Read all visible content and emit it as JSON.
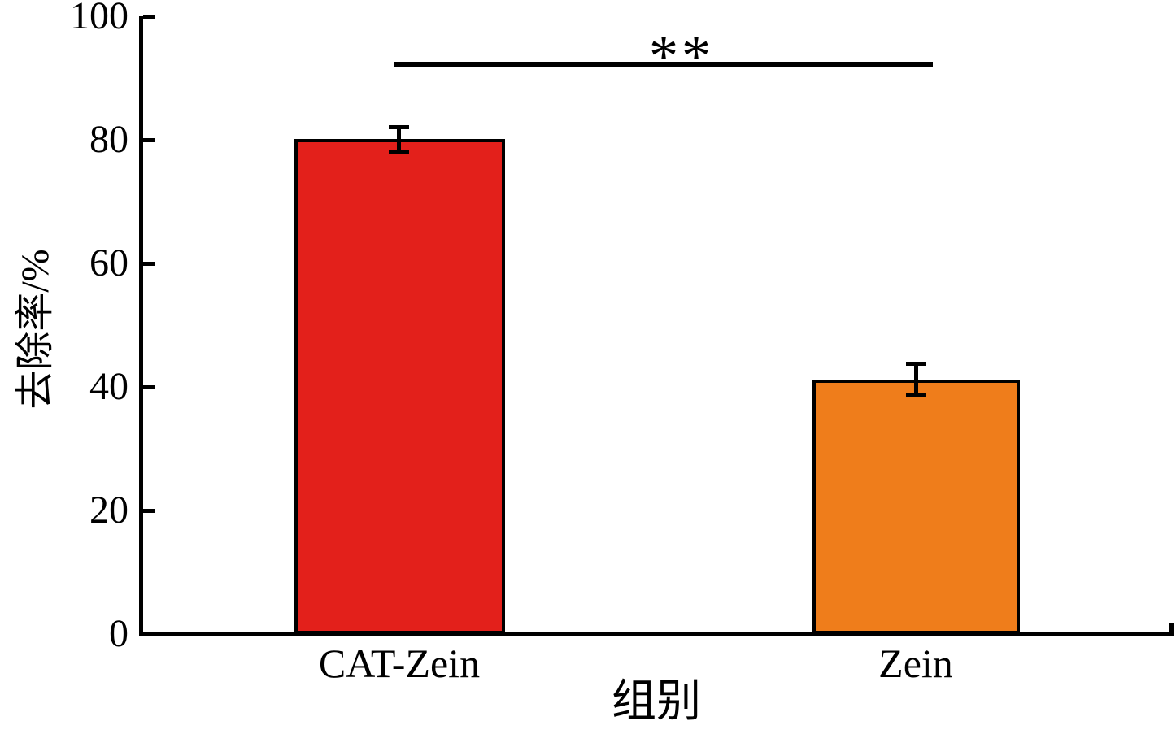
{
  "figure": {
    "background_color": "#ffffff",
    "axis_color": "#000000"
  },
  "chart_data": {
    "type": "bar",
    "categories": [
      "CAT-Zein",
      "Zein"
    ],
    "values": [
      80.3,
      41.2
    ],
    "error_bars": [
      1.8,
      2.5
    ],
    "bar_colors": [
      "#e3201b",
      "#ef7d1b"
    ],
    "bar_edge_color": "#000000",
    "title": "",
    "xlabel": "组别",
    "ylabel": "去除率/%",
    "ylim": [
      0,
      100
    ],
    "yticks": [
      0,
      20,
      40,
      60,
      80,
      100
    ],
    "ytick_labels_top_down": [
      "100",
      "80",
      "60",
      "40",
      "20",
      "0"
    ],
    "grid": false,
    "legend_position": "none",
    "annotations": [
      {
        "type": "significance-bracket",
        "label": "**",
        "between": [
          "CAT-Zein",
          "Zein"
        ]
      }
    ]
  }
}
